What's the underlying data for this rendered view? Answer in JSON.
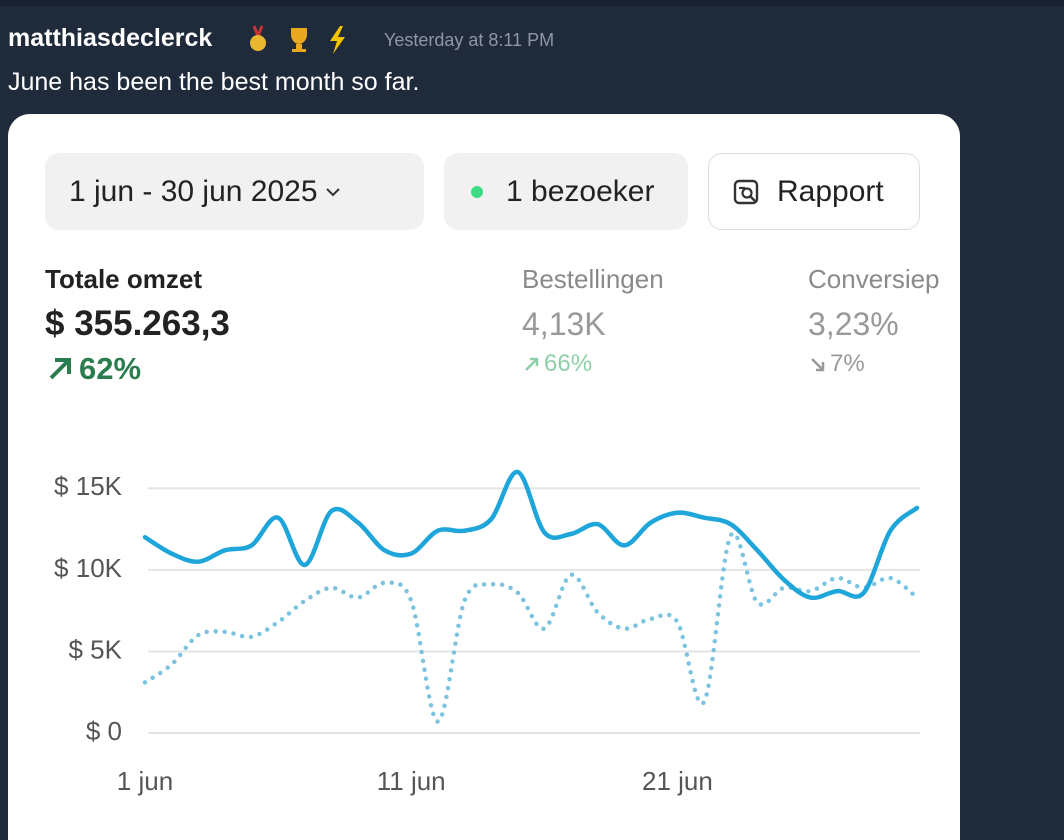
{
  "message": {
    "author": "matthiasdeclerck",
    "time": "Yesterday at 8:11 PM",
    "text": "June has been the best month so far."
  },
  "toolbar": {
    "date_range": "1 jun - 30 jun 2025",
    "visitors": "1 bezoeker",
    "report": "Rapport"
  },
  "metrics": [
    {
      "label": "Totale omzet",
      "value": "$ 355.263,3",
      "change": "62%"
    },
    {
      "label": "Bestellingen",
      "value": "4,13K",
      "change": "66%"
    },
    {
      "label": "Conversiep",
      "value": "3,23%",
      "change": "7%"
    }
  ],
  "chart_data": {
    "type": "line",
    "categories": [
      "1 jun",
      null,
      null,
      null,
      null,
      null,
      null,
      null,
      null,
      null,
      "11 jun",
      null,
      null,
      null,
      null,
      null,
      null,
      null,
      null,
      null,
      "21 jun",
      null,
      null,
      null,
      null,
      null,
      null,
      null,
      null,
      null
    ],
    "series": [
      {
        "color": "#1ea5da",
        "style": "solid",
        "values": [
          12000,
          11000,
          10500,
          11200,
          11500,
          13200,
          10300,
          13600,
          12900,
          11200,
          11000,
          12400,
          12400,
          13100,
          16000,
          12300,
          12200,
          12800,
          11500,
          12900,
          13500,
          13200,
          12800,
          11200,
          9400,
          8300,
          8700,
          8600,
          12400,
          13800
        ]
      },
      {
        "color": "#7cc3e0",
        "style": "dotted",
        "values": [
          3100,
          4200,
          6000,
          6200,
          5900,
          6800,
          8100,
          8900,
          8300,
          9200,
          8100,
          700,
          8100,
          9100,
          8600,
          6400,
          9700,
          7400,
          6400,
          7000,
          6800,
          1900,
          12100,
          8000,
          8900,
          8700,
          9500,
          8900,
          9500,
          8300
        ]
      }
    ],
    "ylim": [
      0,
      16000
    ],
    "yticks": [
      {
        "value": 0,
        "label": "$ 0"
      },
      {
        "value": 5000,
        "label": "$ 5K"
      },
      {
        "value": 10000,
        "label": "$ 10K"
      },
      {
        "value": 15000,
        "label": "$ 15K"
      }
    ],
    "grid": true
  }
}
